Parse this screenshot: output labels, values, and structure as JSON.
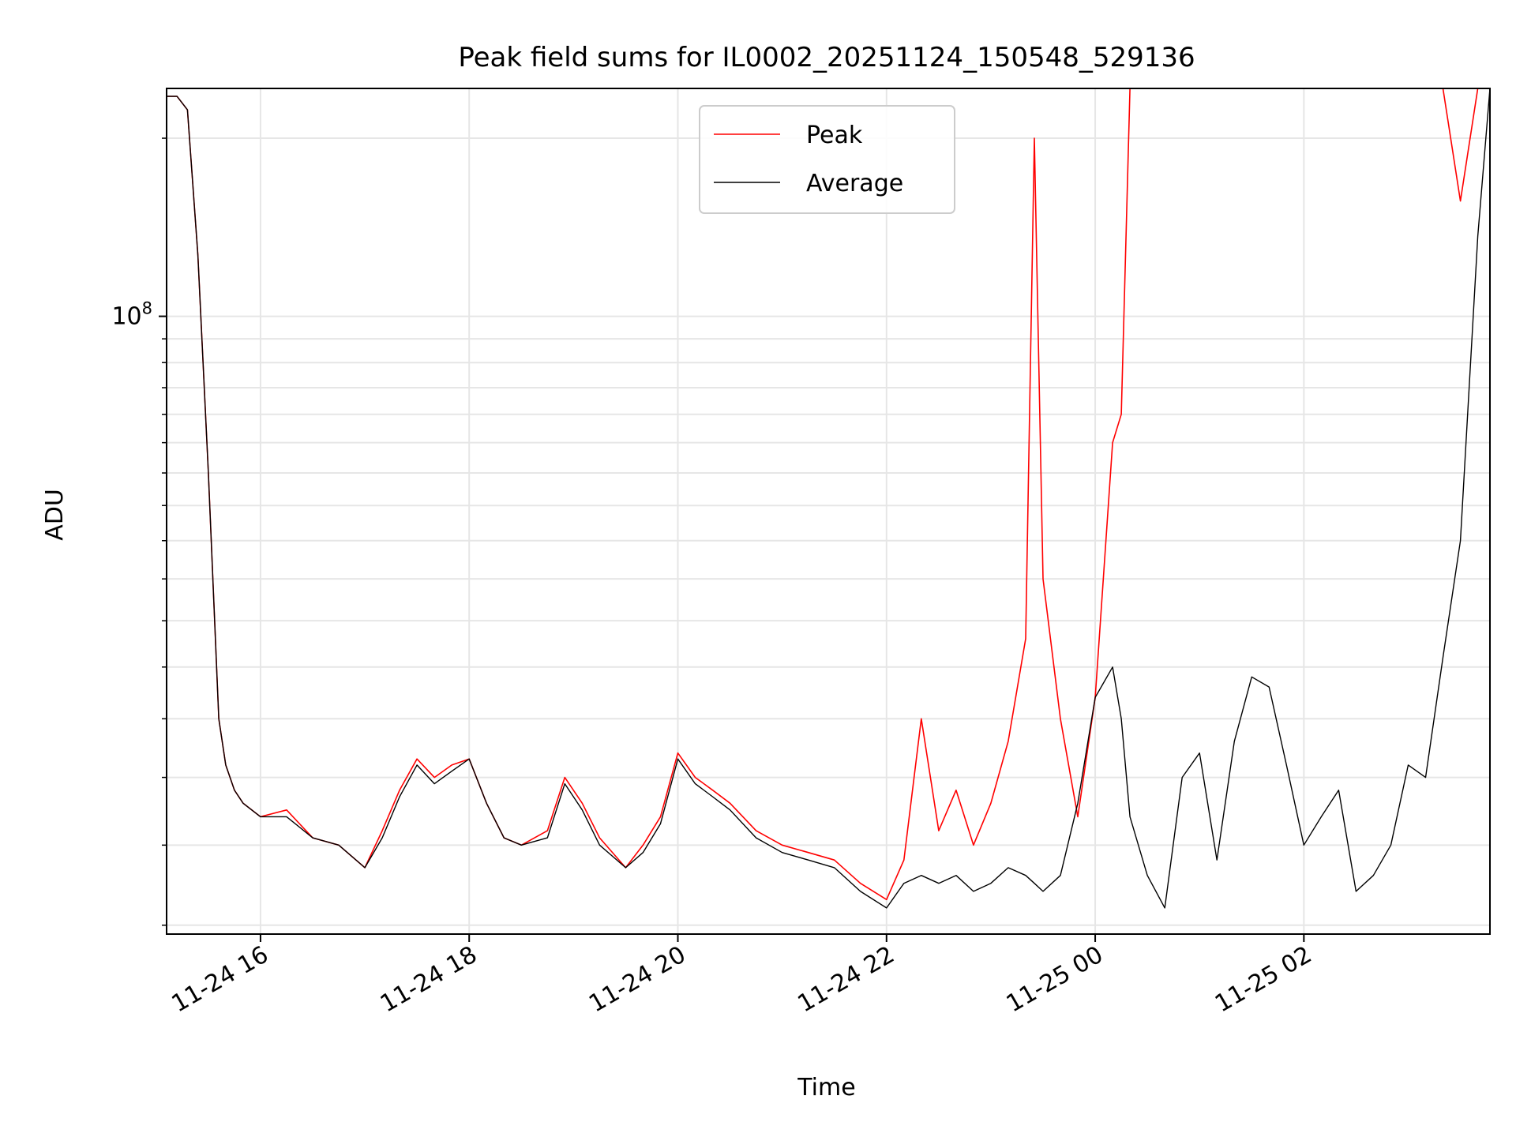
{
  "chart_data": {
    "type": "line",
    "title": "Peak field sums for IL0002_20251124_150548_529136",
    "xlabel": "Time",
    "ylabel": "ADU",
    "y_scale": "log",
    "ylim": [
      24500000,
      168000000
    ],
    "xlim": [
      "2025-11-24 15:06",
      "2025-11-25 03:47"
    ],
    "x_ticks": [
      {
        "value": "2025-11-24 16:00",
        "label": "11-24 16"
      },
      {
        "value": "2025-11-24 18:00",
        "label": "11-24 18"
      },
      {
        "value": "2025-11-24 20:00",
        "label": "11-24 20"
      },
      {
        "value": "2025-11-24 22:00",
        "label": "11-24 22"
      },
      {
        "value": "2025-11-25 00:00",
        "label": "11-25 00"
      },
      {
        "value": "2025-11-25 02:00",
        "label": "11-25 02"
      }
    ],
    "y_tick_label": {
      "value": 100000000,
      "label": "10",
      "exponent": "8"
    },
    "y_minor_ticks": [
      25000000,
      30000000,
      35000000,
      40000000,
      45000000,
      50000000,
      55000000,
      60000000,
      65000000,
      70000000,
      75000000,
      80000000,
      85000000,
      90000000,
      95000000,
      150000000
    ],
    "grid": true,
    "legend": {
      "position": "top-center",
      "entries": [
        "Peak",
        "Average"
      ]
    },
    "series": [
      {
        "name": "Peak",
        "color": "#ff0000",
        "x": [
          "2025-11-24 15:06",
          "2025-11-24 15:12",
          "2025-11-24 15:18",
          "2025-11-24 15:24",
          "2025-11-24 15:30",
          "2025-11-24 15:36",
          "2025-11-24 15:40",
          "2025-11-24 15:45",
          "2025-11-24 15:50",
          "2025-11-24 16:00",
          "2025-11-24 16:15",
          "2025-11-24 16:30",
          "2025-11-24 16:45",
          "2025-11-24 17:00",
          "2025-11-24 17:10",
          "2025-11-24 17:20",
          "2025-11-24 17:30",
          "2025-11-24 17:40",
          "2025-11-24 17:50",
          "2025-11-24 18:00",
          "2025-11-24 18:10",
          "2025-11-24 18:20",
          "2025-11-24 18:30",
          "2025-11-24 18:45",
          "2025-11-24 18:55",
          "2025-11-24 19:05",
          "2025-11-24 19:15",
          "2025-11-24 19:30",
          "2025-11-24 19:40",
          "2025-11-24 19:50",
          "2025-11-24 20:00",
          "2025-11-24 20:10",
          "2025-11-24 20:20",
          "2025-11-24 20:30",
          "2025-11-24 20:45",
          "2025-11-24 21:00",
          "2025-11-24 21:15",
          "2025-11-24 21:30",
          "2025-11-24 21:45",
          "2025-11-24 22:00",
          "2025-11-24 22:10",
          "2025-11-24 22:20",
          "2025-11-24 22:30",
          "2025-11-24 22:40",
          "2025-11-24 22:50",
          "2025-11-24 23:00",
          "2025-11-24 23:10",
          "2025-11-24 23:20",
          "2025-11-24 23:25",
          "2025-11-24 23:30",
          "2025-11-24 23:40",
          "2025-11-24 23:50",
          "2025-11-25 00:00",
          "2025-11-25 00:10",
          "2025-11-25 00:15",
          "2025-11-25 00:20",
          "2025-11-25 00:30",
          "2025-11-25 00:40",
          "2025-11-25 00:50",
          "2025-11-25 01:00",
          "2025-11-25 01:10",
          "2025-11-25 01:20",
          "2025-11-25 01:30",
          "2025-11-25 01:40",
          "2025-11-25 01:50",
          "2025-11-25 02:00",
          "2025-11-25 02:10",
          "2025-11-25 02:20",
          "2025-11-25 02:30",
          "2025-11-25 02:40",
          "2025-11-25 02:50",
          "2025-11-25 03:00",
          "2025-11-25 03:10",
          "2025-11-25 03:20",
          "2025-11-25 03:30",
          "2025-11-25 03:40",
          "2025-11-25 03:47"
        ],
        "y": [
          165000000,
          165000000,
          160000000,
          115000000,
          70000000,
          40000000,
          36000000,
          34000000,
          33000000,
          32000000,
          32500000,
          30500000,
          30000000,
          28500000,
          31000000,
          34000000,
          36500000,
          35000000,
          36000000,
          36500000,
          33000000,
          30500000,
          30000000,
          31000000,
          35000000,
          33000000,
          30500000,
          28500000,
          30000000,
          32000000,
          37000000,
          35000000,
          34000000,
          33000000,
          31000000,
          30000000,
          29500000,
          29000000,
          27500000,
          26500000,
          29000000,
          40000000,
          31000000,
          34000000,
          30000000,
          33000000,
          38000000,
          48000000,
          150000000,
          55000000,
          40000000,
          32000000,
          42000000,
          75000000,
          80000000,
          168000000,
          168000000,
          168000000,
          168000000,
          168000000,
          168000000,
          168000000,
          168000000,
          168000000,
          168000000,
          168000000,
          168000000,
          168000000,
          168000000,
          168000000,
          168000000,
          168000000,
          168000000,
          168000000,
          130000000,
          168000000,
          168000000
        ]
      },
      {
        "name": "Average",
        "color": "#000000",
        "x": [
          "2025-11-24 15:06",
          "2025-11-24 15:12",
          "2025-11-24 15:18",
          "2025-11-24 15:24",
          "2025-11-24 15:30",
          "2025-11-24 15:36",
          "2025-11-24 15:40",
          "2025-11-24 15:45",
          "2025-11-24 15:50",
          "2025-11-24 16:00",
          "2025-11-24 16:15",
          "2025-11-24 16:30",
          "2025-11-24 16:45",
          "2025-11-24 17:00",
          "2025-11-24 17:10",
          "2025-11-24 17:20",
          "2025-11-24 17:30",
          "2025-11-24 17:40",
          "2025-11-24 17:50",
          "2025-11-24 18:00",
          "2025-11-24 18:10",
          "2025-11-24 18:20",
          "2025-11-24 18:30",
          "2025-11-24 18:45",
          "2025-11-24 18:55",
          "2025-11-24 19:05",
          "2025-11-24 19:15",
          "2025-11-24 19:30",
          "2025-11-24 19:40",
          "2025-11-24 19:50",
          "2025-11-24 20:00",
          "2025-11-24 20:10",
          "2025-11-24 20:20",
          "2025-11-24 20:30",
          "2025-11-24 20:45",
          "2025-11-24 21:00",
          "2025-11-24 21:15",
          "2025-11-24 21:30",
          "2025-11-24 21:45",
          "2025-11-24 22:00",
          "2025-11-24 22:10",
          "2025-11-24 22:20",
          "2025-11-24 22:30",
          "2025-11-24 22:40",
          "2025-11-24 22:50",
          "2025-11-24 23:00",
          "2025-11-24 23:10",
          "2025-11-24 23:20",
          "2025-11-24 23:25",
          "2025-11-24 23:30",
          "2025-11-24 23:40",
          "2025-11-24 23:50",
          "2025-11-25 00:00",
          "2025-11-25 00:10",
          "2025-11-25 00:15",
          "2025-11-25 00:20",
          "2025-11-25 00:30",
          "2025-11-25 00:40",
          "2025-11-25 00:50",
          "2025-11-25 01:00",
          "2025-11-25 01:10",
          "2025-11-25 01:20",
          "2025-11-25 01:30",
          "2025-11-25 01:40",
          "2025-11-25 01:50",
          "2025-11-25 02:00",
          "2025-11-25 02:10",
          "2025-11-25 02:20",
          "2025-11-25 02:30",
          "2025-11-25 02:40",
          "2025-11-25 02:50",
          "2025-11-25 03:00",
          "2025-11-25 03:10",
          "2025-11-25 03:20",
          "2025-11-25 03:30",
          "2025-11-25 03:40",
          "2025-11-25 03:47"
        ],
        "y": [
          165000000,
          165000000,
          160000000,
          115000000,
          70000000,
          40000000,
          36000000,
          34000000,
          33000000,
          32000000,
          32000000,
          30500000,
          30000000,
          28500000,
          30500000,
          33500000,
          36000000,
          34500000,
          35500000,
          36500000,
          33000000,
          30500000,
          30000000,
          30500000,
          34500000,
          32500000,
          30000000,
          28500000,
          29500000,
          31500000,
          36500000,
          34500000,
          33500000,
          32500000,
          30500000,
          29500000,
          29000000,
          28500000,
          27000000,
          26000000,
          27500000,
          28000000,
          27500000,
          28000000,
          27000000,
          27500000,
          28500000,
          28000000,
          27500000,
          27000000,
          28000000,
          33000000,
          42000000,
          45000000,
          40000000,
          32000000,
          28000000,
          26000000,
          35000000,
          37000000,
          29000000,
          38000000,
          44000000,
          43000000,
          36000000,
          30000000,
          32000000,
          34000000,
          27000000,
          28000000,
          30000000,
          36000000,
          35000000,
          46000000,
          60000000,
          120000000,
          168000000
        ]
      }
    ]
  }
}
